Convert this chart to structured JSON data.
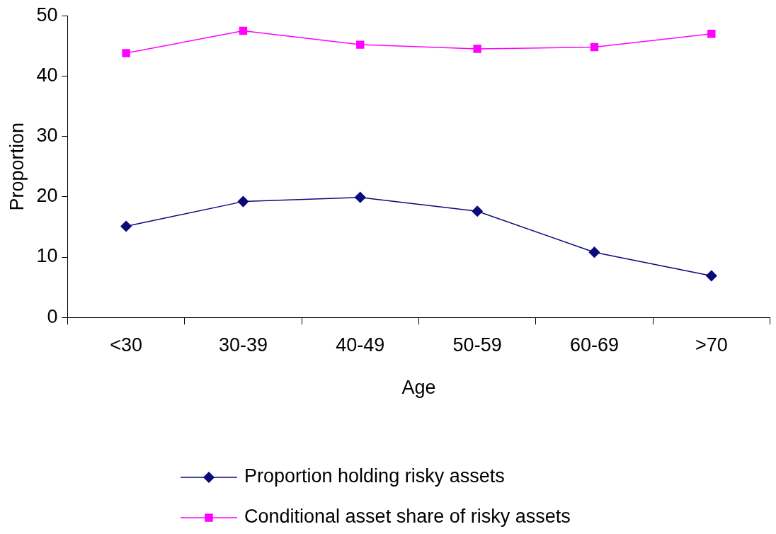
{
  "chart_data": {
    "type": "line",
    "xlabel": "Age",
    "ylabel": "Proportion",
    "categories": [
      "<30",
      "30-39",
      "40-49",
      "50-59",
      "60-69",
      ">70"
    ],
    "series": [
      {
        "name": "Proportion holding risky assets",
        "color": "#0a0a7a",
        "marker": "diamond",
        "values": [
          15.1,
          19.2,
          19.9,
          17.6,
          10.8,
          6.9
        ]
      },
      {
        "name": "Conditional asset share of risky assets",
        "color": "#ff00ff",
        "marker": "square",
        "values": [
          43.8,
          47.5,
          45.2,
          44.5,
          44.8,
          47.0
        ]
      }
    ],
    "ylim": [
      0,
      50
    ],
    "yticks": [
      0,
      10,
      20,
      30,
      40,
      50
    ],
    "grid": false,
    "legend": "bottom",
    "line_style": "solid"
  }
}
